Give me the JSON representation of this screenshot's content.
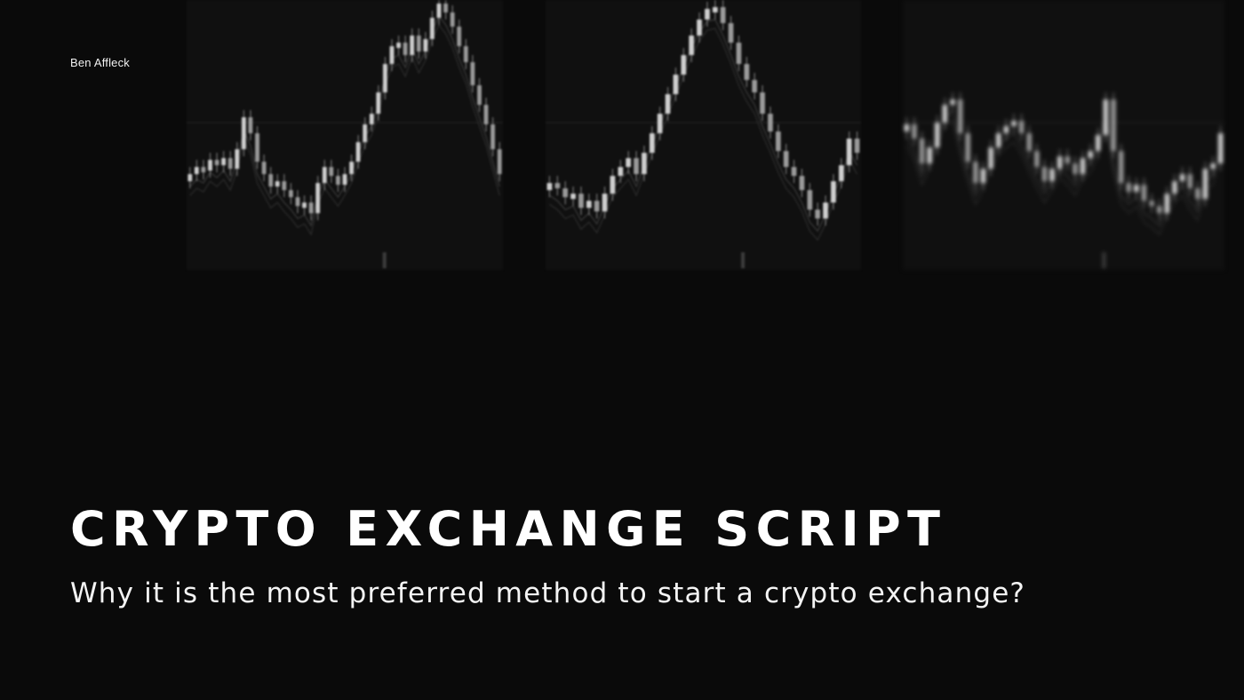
{
  "author": "Ben Affleck",
  "title": "CRYPTO EXCHANGE SCRIPT",
  "subtitle": "Why it is the most preferred method to start a crypto exchange?",
  "colors": {
    "background": "#0a0a0a",
    "panel": "#101010",
    "candle": "#cfcfcf",
    "text": "#ffffff"
  },
  "decor": {
    "icons": [
      "candlestick-chart-icon"
    ],
    "series_a": [
      196,
      188,
      192,
      180,
      186,
      178,
      190,
      168,
      132,
      150,
      182,
      196,
      210,
      204,
      214,
      222,
      232,
      228,
      240,
      206,
      188,
      198,
      208,
      196,
      182,
      160,
      140,
      128,
      104,
      72,
      52,
      48,
      62,
      40,
      58,
      44,
      20,
      4,
      14,
      30,
      52,
      70,
      96,
      118,
      140,
      168,
      196
    ],
    "series_b": [
      206,
      212,
      222,
      218,
      234,
      226,
      238,
      218,
      198,
      188,
      178,
      196,
      172,
      150,
      128,
      106,
      84,
      62,
      40,
      22,
      10,
      8,
      26,
      48,
      72,
      90,
      104,
      128,
      148,
      170,
      188,
      198,
      214,
      236,
      246,
      228,
      204,
      186,
      156,
      172
    ],
    "series_c": [
      140,
      156,
      184,
      166,
      138,
      118,
      112,
      150,
      182,
      206,
      190,
      166,
      150,
      142,
      136,
      150,
      170,
      188,
      204,
      190,
      176,
      184,
      196,
      178,
      170,
      152,
      112,
      170,
      206,
      216,
      208,
      226,
      232,
      240,
      218,
      204,
      196,
      212,
      224,
      190,
      184,
      150
    ]
  }
}
